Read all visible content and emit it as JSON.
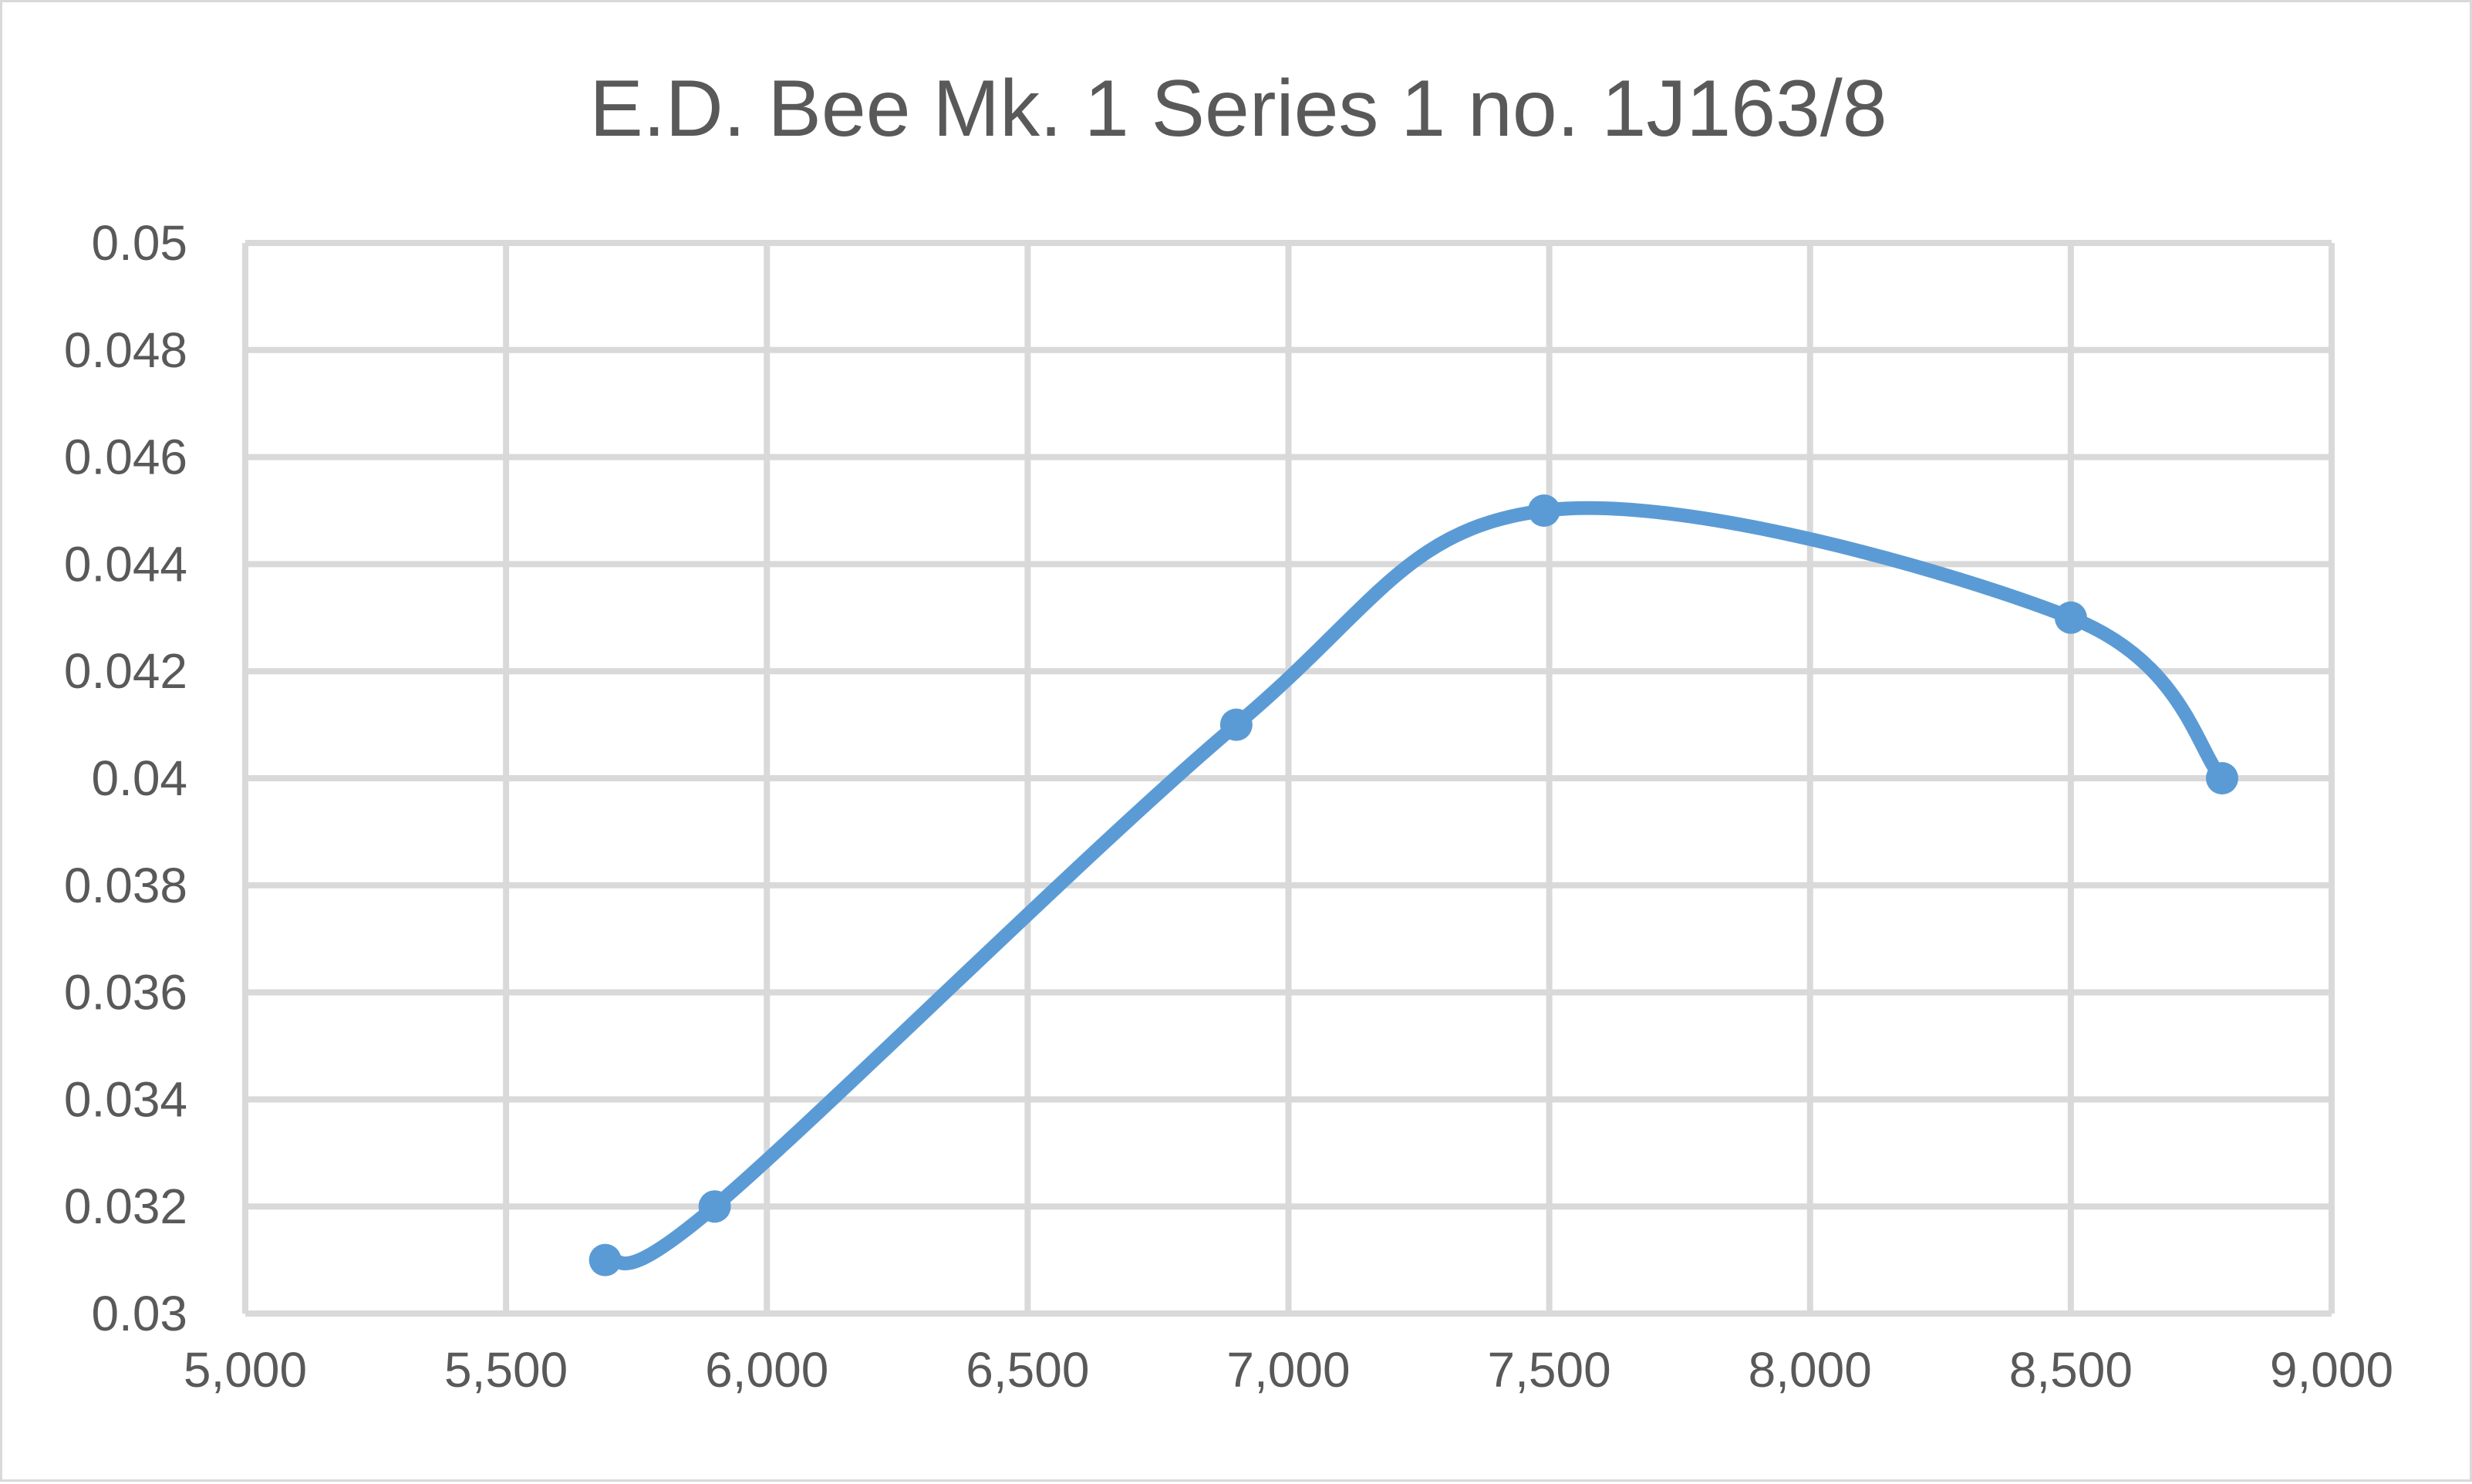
{
  "chart_data": {
    "type": "line",
    "title": "E.D. Bee Mk. 1 Series 1 no. 1J163/8",
    "xlabel": "",
    "ylabel": "",
    "xlim": [
      5000,
      9000
    ],
    "ylim": [
      0.03,
      0.05
    ],
    "x_ticks": [
      "5,000",
      "5,500",
      "6,000",
      "6,500",
      "7,000",
      "7,500",
      "8,000",
      "8,500",
      "9,000"
    ],
    "y_ticks": [
      "0.03",
      "0.032",
      "0.034",
      "0.036",
      "0.038",
      "0.04",
      "0.042",
      "0.044",
      "0.046",
      "0.048",
      "0.05"
    ],
    "grid": true,
    "legend": "none",
    "smooth": true,
    "colors": {
      "series": "#5b9bd5",
      "grid": "#d9d9d9",
      "text": "#595959"
    },
    "series": [
      {
        "x": [
          5690,
          5900,
          6900,
          7490,
          8500,
          8790
        ],
        "y": [
          0.031,
          0.032,
          0.041,
          0.045,
          0.043,
          0.04
        ]
      }
    ]
  }
}
